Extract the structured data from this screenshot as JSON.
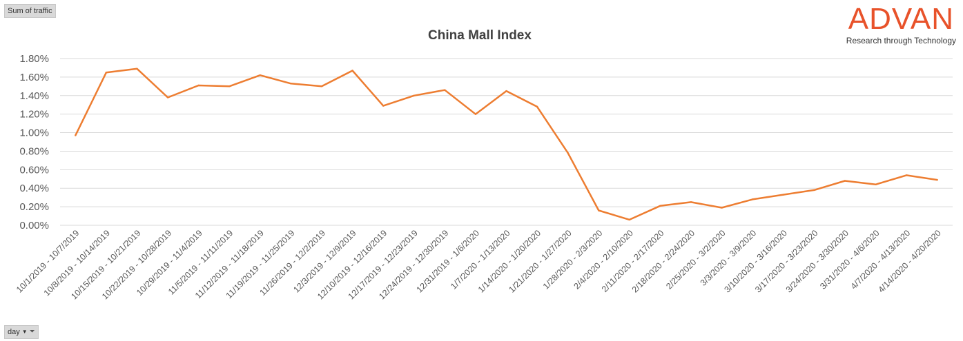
{
  "pivot": {
    "value_field": "Sum of traffic",
    "axis_field": "day"
  },
  "logo": {
    "word": "ADVAN",
    "tagline": "Research through Technology"
  },
  "colors": {
    "line": "#ed7d31",
    "grid": "#d9d9d9",
    "logo": "#e8522a"
  },
  "icons": {
    "filter": "funnel-icon",
    "dropdown": "dropdown-arrow-icon"
  },
  "chart_data": {
    "type": "line",
    "title": "China Mall Index",
    "xlabel": "",
    "ylabel": "",
    "ylim": [
      0,
      1.8
    ],
    "yticks": [
      0,
      0.2,
      0.4,
      0.6,
      0.8,
      1.0,
      1.2,
      1.4,
      1.6,
      1.8
    ],
    "ytick_labels": [
      "0.00%",
      "0.20%",
      "0.40%",
      "0.60%",
      "0.80%",
      "1.00%",
      "1.20%",
      "1.40%",
      "1.60%",
      "1.80%"
    ],
    "grid": true,
    "legend": "none",
    "categories": [
      "10/1/2019 - 10/7/2019",
      "10/8/2019 - 10/14/2019",
      "10/15/2019 - 10/21/2019",
      "10/22/2019 - 10/28/2019",
      "10/29/2019 - 11/4/2019",
      "11/5/2019 - 11/11/2019",
      "11/12/2019 - 11/18/2019",
      "11/19/2019 - 11/25/2019",
      "11/26/2019 - 12/2/2019",
      "12/3/2019 - 12/9/2019",
      "12/10/2019 - 12/16/2019",
      "12/17/2019 - 12/23/2019",
      "12/24/2019 - 12/30/2019",
      "12/31/2019 - 1/6/2020",
      "1/7/2020 - 1/13/2020",
      "1/14/2020 - 1/20/2020",
      "1/21/2020 - 1/27/2020",
      "1/28/2020 - 2/3/2020",
      "2/4/2020 - 2/10/2020",
      "2/11/2020 - 2/17/2020",
      "2/18/2020 - 2/24/2020",
      "2/25/2020 - 3/2/2020",
      "3/3/2020 - 3/9/2020",
      "3/10/2020 - 3/16/2020",
      "3/17/2020 - 3/23/2020",
      "3/24/2020 - 3/30/2020",
      "3/31/2020 - 4/6/2020",
      "4/7/2020 - 4/13/2020",
      "4/14/2020 - 4/20/2020"
    ],
    "series": [
      {
        "values": [
          0.97,
          1.65,
          1.69,
          1.38,
          1.51,
          1.5,
          1.62,
          1.53,
          1.5,
          1.67,
          1.29,
          1.4,
          1.46,
          1.2,
          1.45,
          1.28,
          0.78,
          0.16,
          0.06,
          0.21,
          0.25,
          0.19,
          0.28,
          0.33,
          0.38,
          0.48,
          0.44,
          0.54,
          0.49
        ]
      }
    ]
  }
}
